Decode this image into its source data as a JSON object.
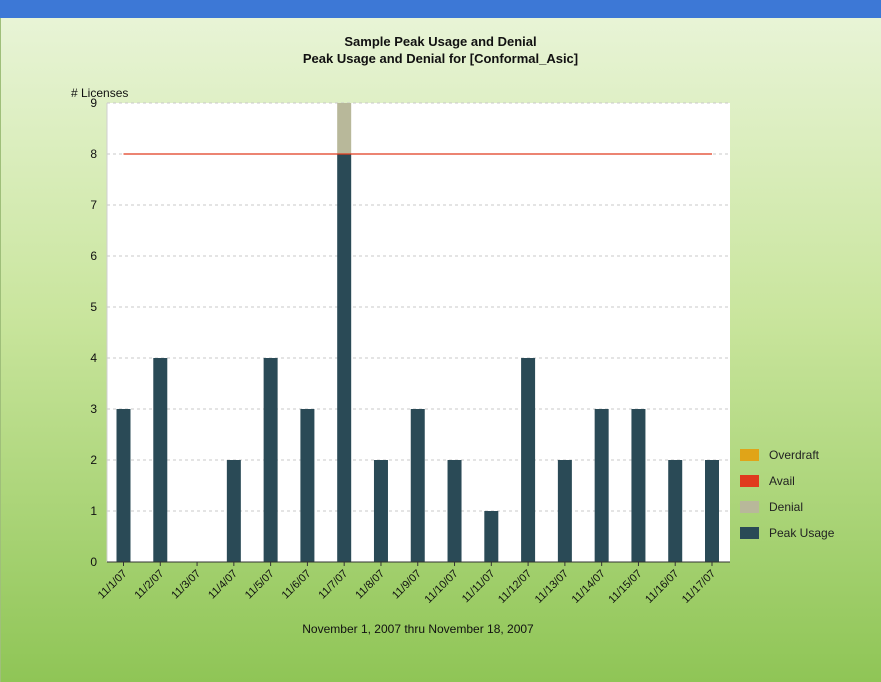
{
  "chart_data": {
    "type": "bar",
    "title": "Sample Peak Usage and Denial",
    "subtitle": "Peak Usage and Denial for [Conformal_Asic]",
    "ylabel": "# Licenses",
    "xlabel": "November 1, 2007 thru November 18, 2007",
    "ylim": [
      0,
      9
    ],
    "yticks": [
      "0",
      "1",
      "2",
      "3",
      "4",
      "5",
      "6",
      "7",
      "8",
      "9"
    ],
    "categories": [
      "11/1/07",
      "11/2/07",
      "11/3/07",
      "11/4/07",
      "11/5/07",
      "11/6/07",
      "11/7/07",
      "11/8/07",
      "11/9/07",
      "11/10/07",
      "11/11/07",
      "11/12/07",
      "11/13/07",
      "11/14/07",
      "11/15/07",
      "11/16/07",
      "11/17/07"
    ],
    "series": [
      {
        "name": "Peak Usage",
        "color": "#2a4a56",
        "values": [
          3,
          4,
          0,
          2,
          4,
          3,
          8,
          2,
          3,
          2,
          1,
          4,
          2,
          3,
          3,
          2,
          2
        ]
      },
      {
        "name": "Denial",
        "color": "#b8b89a",
        "values": [
          0,
          0,
          0,
          0,
          0,
          0,
          1,
          0,
          0,
          0,
          0,
          0,
          0,
          0,
          0,
          0,
          0
        ]
      },
      {
        "name": "Avail",
        "color": "#e03a1e",
        "values": [
          8,
          8,
          8,
          8,
          8,
          8,
          8,
          8,
          8,
          8,
          8,
          8,
          8,
          8,
          8,
          8,
          8
        ]
      },
      {
        "name": "Overdraft",
        "color": "#e0a418",
        "values": [
          0,
          0,
          0,
          0,
          0,
          0,
          0,
          0,
          0,
          0,
          0,
          0,
          0,
          0,
          0,
          0,
          0
        ]
      }
    ],
    "legend": [
      "Overdraft",
      "Avail",
      "Denial",
      "Peak Usage"
    ],
    "legend_position": "right",
    "grid": true
  }
}
